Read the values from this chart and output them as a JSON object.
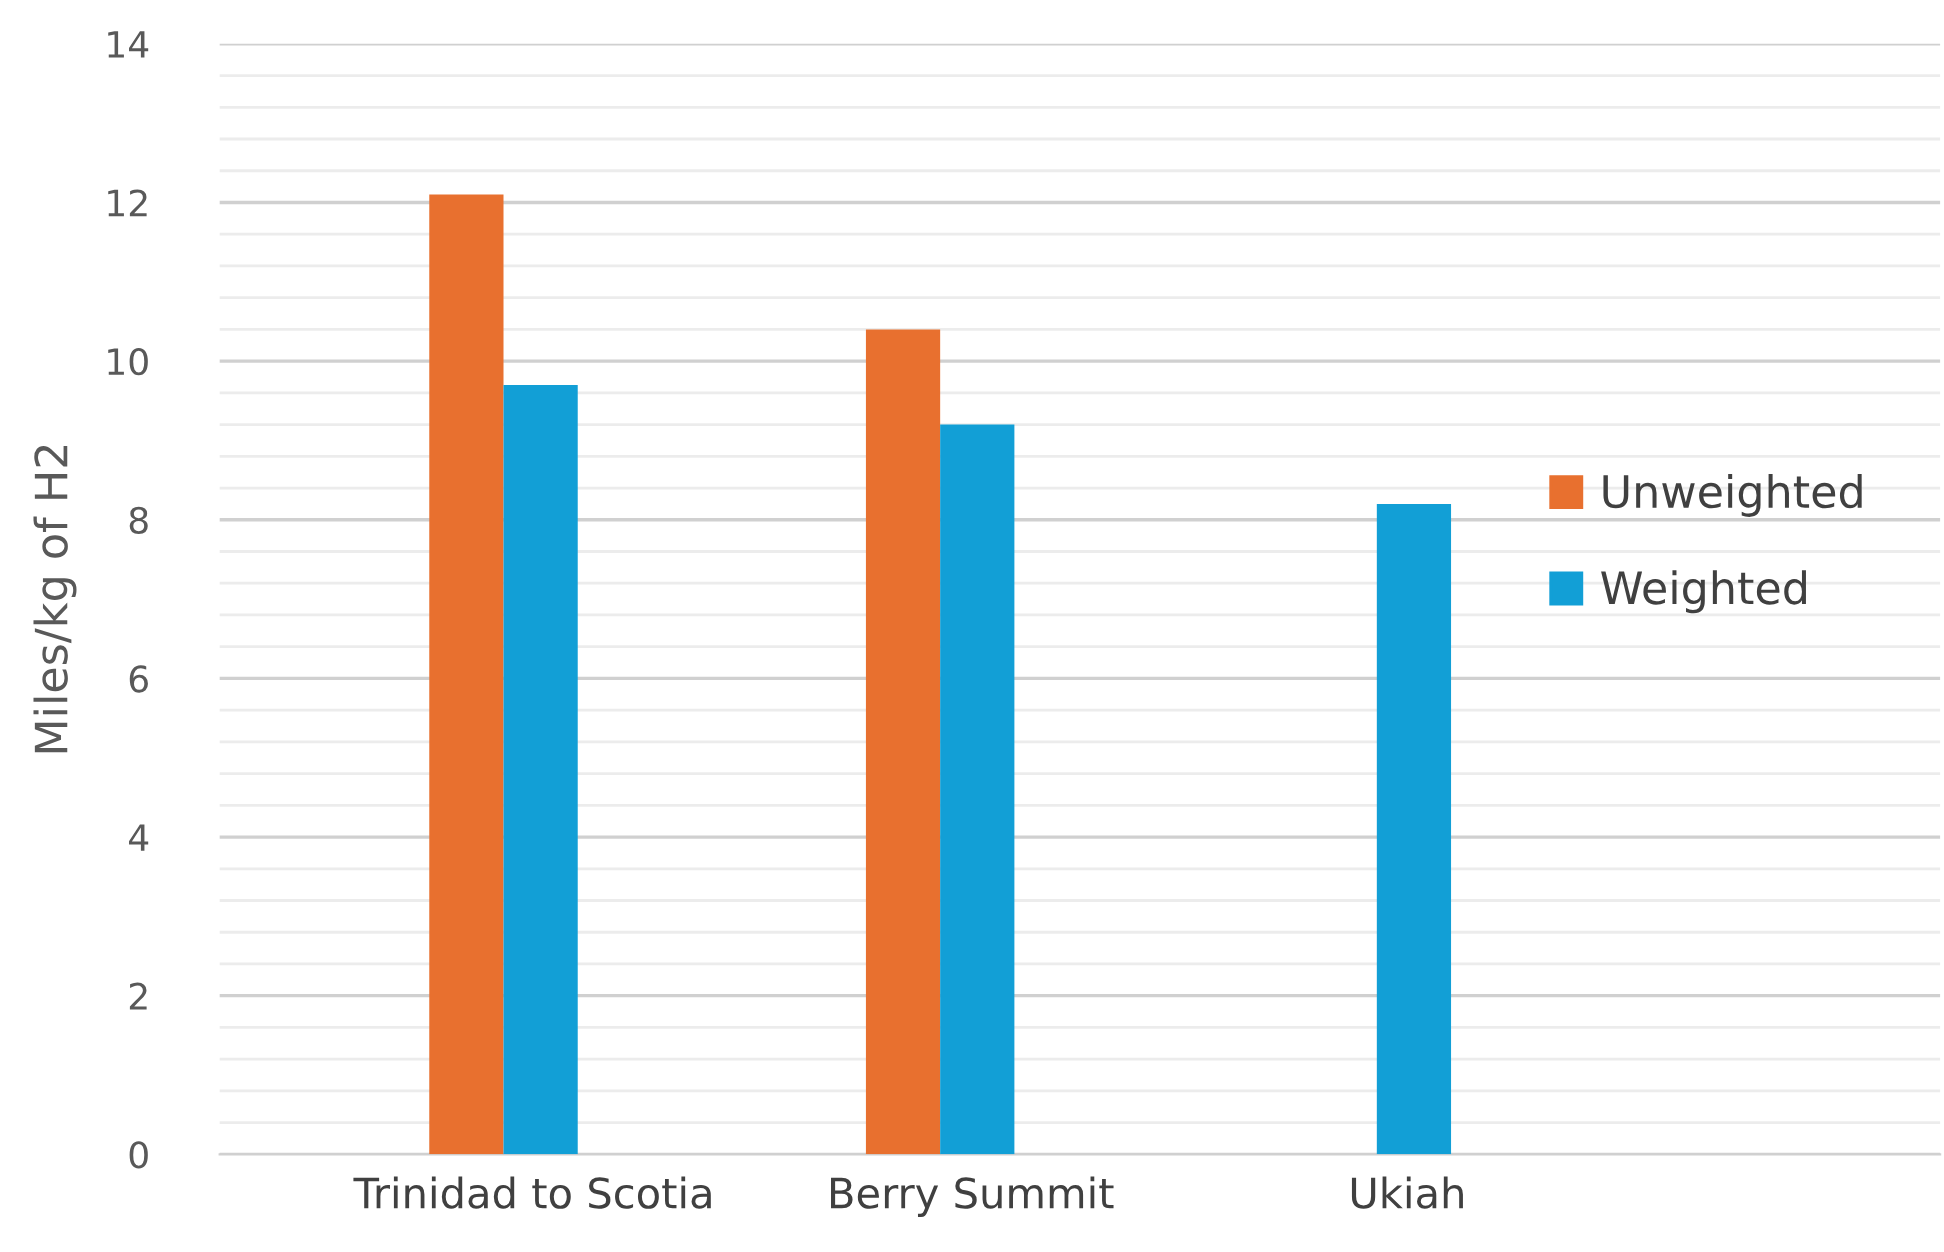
{
  "chart_data": {
    "type": "bar",
    "ylabel": "Miles/kg of H2",
    "categories": [
      "Trinidad to Scotia",
      "Berry Summit",
      "Ukiah"
    ],
    "series": [
      {
        "name": "Unweighted",
        "color": "#e8702f",
        "values": [
          12.1,
          10.4,
          null
        ]
      },
      {
        "name": "Weighted",
        "color": "#129fd6",
        "values": [
          9.7,
          9.2,
          8.2
        ]
      }
    ],
    "ylim": [
      0,
      14
    ],
    "yticks": [
      0,
      2,
      4,
      6,
      8,
      10,
      12,
      14
    ],
    "grid": "y",
    "legend": "right"
  }
}
